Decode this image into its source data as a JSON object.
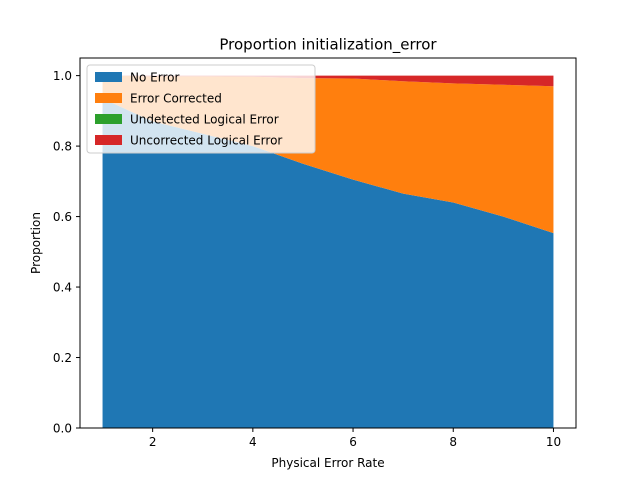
{
  "chart_data": {
    "type": "area",
    "stacked": true,
    "title": "Proportion initialization_error",
    "xlabel": "Physical Error Rate",
    "ylabel": "Proportion",
    "xlim": [
      0.55,
      10.45
    ],
    "ylim": [
      0,
      1.05
    ],
    "xticks": [
      2,
      4,
      6,
      8,
      10
    ],
    "yticks": [
      0.0,
      0.2,
      0.4,
      0.6,
      0.8,
      1.0
    ],
    "legend_position": "top-left",
    "grid": false,
    "x": [
      1,
      2,
      3,
      4,
      5,
      6,
      7,
      8,
      9,
      10
    ],
    "series": [
      {
        "name": "No Error",
        "color": "#1f77b4",
        "values": [
          0.935,
          0.87,
          0.835,
          0.8,
          0.75,
          0.705,
          0.665,
          0.64,
          0.6,
          0.553
        ]
      },
      {
        "name": "Error Corrected",
        "color": "#ff7f0e",
        "values": [
          0.065,
          0.128,
          0.163,
          0.197,
          0.243,
          0.287,
          0.319,
          0.338,
          0.374,
          0.417
        ]
      },
      {
        "name": "Undetected Logical Error",
        "color": "#2ca02c",
        "values": [
          0,
          0,
          0,
          0,
          0,
          0,
          0,
          0,
          0,
          0
        ]
      },
      {
        "name": "Uncorrected Logical Error",
        "color": "#d62728",
        "values": [
          0,
          0.002,
          0.002,
          0.003,
          0.007,
          0.008,
          0.016,
          0.022,
          0.026,
          0.03
        ]
      }
    ]
  }
}
